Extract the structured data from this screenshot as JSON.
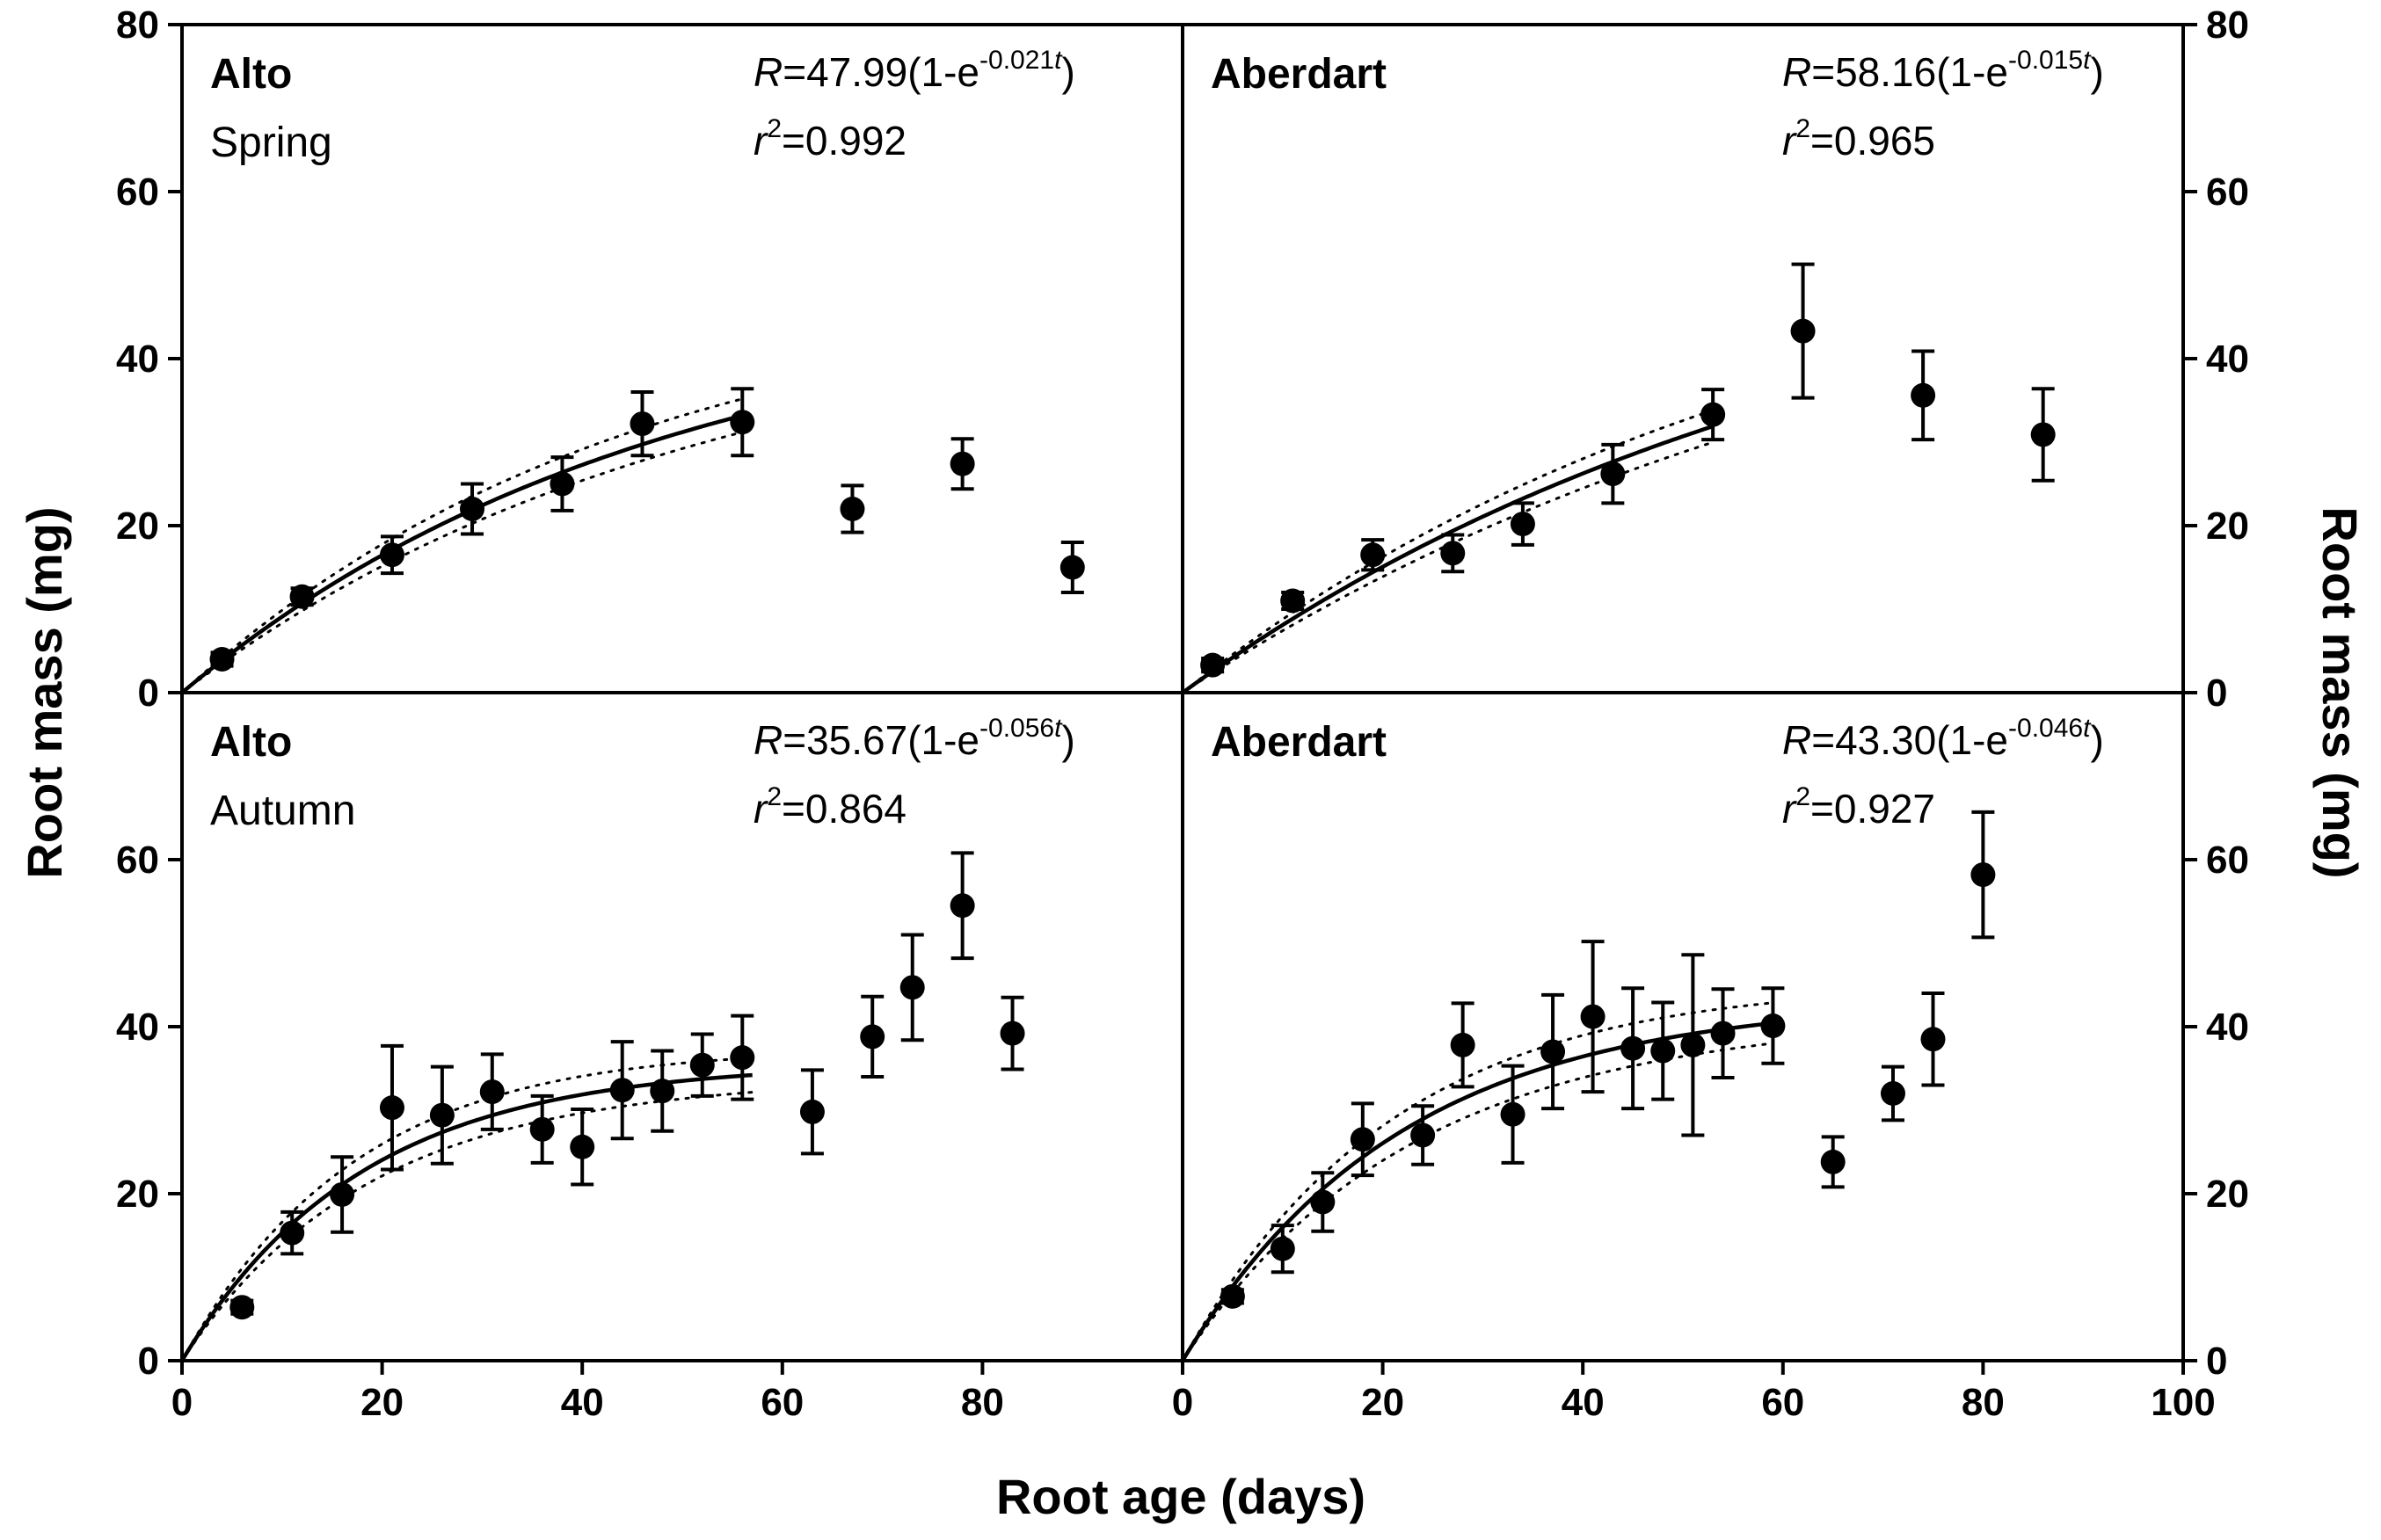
{
  "chart_data": {
    "type": "scatter",
    "layout": "2x2 panel grid",
    "xlabel": "Root age (days)",
    "ylabel_left": "Root mass (mg)",
    "ylabel_right": "Root mass (mg)",
    "ylim": [
      0,
      80
    ],
    "y_ticks": [
      "0",
      "20",
      "40",
      "60",
      "80"
    ],
    "left_xlim": [
      0,
      100
    ],
    "left_x_ticks": [
      "0",
      "20",
      "40",
      "60",
      "80"
    ],
    "right_xlim": [
      0,
      100
    ],
    "right_x_ticks": [
      "0",
      "20",
      "40",
      "60",
      "80",
      "100"
    ],
    "panels": [
      {
        "id": "alto-spring",
        "cultivar": "Alto",
        "season": "Spring",
        "eq_R_prefix": "=47.99(1-e",
        "eq_exponent": "-0.021",
        "eq_suffix": ")",
        "eq_r2": "=0.992",
        "fit": {
          "a": 47.99,
          "k": 0.021,
          "x_end": 56
        },
        "points": [
          {
            "x": 4,
            "y": 4,
            "err": 0.8
          },
          {
            "x": 12,
            "y": 11.5,
            "err": 1.0
          },
          {
            "x": 21,
            "y": 16.5,
            "err": 2.2
          },
          {
            "x": 29,
            "y": 22,
            "err": 3.0
          },
          {
            "x": 38,
            "y": 25,
            "err": 3.2
          },
          {
            "x": 46,
            "y": 32.2,
            "err": 3.8
          },
          {
            "x": 56,
            "y": 32.4,
            "err": 4.0
          },
          {
            "x": 67,
            "y": 22,
            "err": 2.8
          },
          {
            "x": 78,
            "y": 27.4,
            "err": 3.0
          },
          {
            "x": 89,
            "y": 15,
            "err": 3.0
          }
        ]
      },
      {
        "id": "aberdart-spring",
        "cultivar": "Aberdart",
        "season": "",
        "eq_R_prefix": "=58.16(1-e",
        "eq_exponent": "-0.015",
        "eq_suffix": ")",
        "eq_r2": "=0.965",
        "fit": {
          "a": 58.16,
          "k": 0.015,
          "x_end": 53
        },
        "points": [
          {
            "x": 3,
            "y": 3.3,
            "err": 0.8
          },
          {
            "x": 11,
            "y": 11,
            "err": 1.0
          },
          {
            "x": 19,
            "y": 16.5,
            "err": 1.8
          },
          {
            "x": 27,
            "y": 16.7,
            "err": 2.2
          },
          {
            "x": 34,
            "y": 20.2,
            "err": 2.5
          },
          {
            "x": 43,
            "y": 26.2,
            "err": 3.5
          },
          {
            "x": 53,
            "y": 33.3,
            "err": 3.0
          },
          {
            "x": 62,
            "y": 43.3,
            "err": 8.0
          },
          {
            "x": 74,
            "y": 35.6,
            "err": 5.3
          },
          {
            "x": 86,
            "y": 30.9,
            "err": 5.5
          }
        ]
      },
      {
        "id": "alto-autumn",
        "cultivar": "Alto",
        "season": "Autumn",
        "eq_R_prefix": "=35.67(1-e",
        "eq_exponent": "-0.056",
        "eq_suffix": ")",
        "eq_r2": "=0.864",
        "fit": {
          "a": 35.67,
          "k": 0.056,
          "x_end": 57
        },
        "points": [
          {
            "x": 6,
            "y": 6.4,
            "err": 0.8
          },
          {
            "x": 11,
            "y": 15.3,
            "err": 2.5
          },
          {
            "x": 16,
            "y": 19.9,
            "err": 4.5
          },
          {
            "x": 21,
            "y": 30.3,
            "err": 7.4
          },
          {
            "x": 26,
            "y": 29.4,
            "err": 5.8
          },
          {
            "x": 31,
            "y": 32.2,
            "err": 4.5
          },
          {
            "x": 36,
            "y": 27.7,
            "err": 4.0
          },
          {
            "x": 40,
            "y": 25.6,
            "err": 4.5
          },
          {
            "x": 44,
            "y": 32.4,
            "err": 5.8
          },
          {
            "x": 48,
            "y": 32.3,
            "err": 4.8
          },
          {
            "x": 52,
            "y": 35.4,
            "err": 3.7
          },
          {
            "x": 56,
            "y": 36.3,
            "err": 5.0
          },
          {
            "x": 63,
            "y": 29.8,
            "err": 5.0
          },
          {
            "x": 69,
            "y": 38.8,
            "err": 4.8
          },
          {
            "x": 73,
            "y": 44.7,
            "err": 6.3
          },
          {
            "x": 78,
            "y": 54.5,
            "err": 6.3
          },
          {
            "x": 83,
            "y": 39.2,
            "err": 4.3
          }
        ]
      },
      {
        "id": "aberdart-autumn",
        "cultivar": "Aberdart",
        "season": "",
        "eq_R_prefix": "=43.30(1-e",
        "eq_exponent": "-0.046",
        "eq_suffix": ")",
        "eq_r2": "=0.927",
        "fit": {
          "a": 43.3,
          "k": 0.046,
          "x_end": 59
        },
        "points": [
          {
            "x": 5,
            "y": 7.7,
            "err": 0.8
          },
          {
            "x": 10,
            "y": 13.4,
            "err": 2.8
          },
          {
            "x": 14,
            "y": 19,
            "err": 3.5
          },
          {
            "x": 18,
            "y": 26.5,
            "err": 4.3
          },
          {
            "x": 24,
            "y": 27,
            "err": 3.5
          },
          {
            "x": 28,
            "y": 37.8,
            "err": 5.0
          },
          {
            "x": 33,
            "y": 29.5,
            "err": 5.8
          },
          {
            "x": 37,
            "y": 37,
            "err": 6.8
          },
          {
            "x": 41,
            "y": 41.2,
            "err": 9.0
          },
          {
            "x": 45,
            "y": 37.4,
            "err": 7.2
          },
          {
            "x": 48,
            "y": 37.1,
            "err": 5.8
          },
          {
            "x": 51,
            "y": 37.8,
            "err": 10.8
          },
          {
            "x": 54,
            "y": 39.2,
            "err": 5.3
          },
          {
            "x": 59,
            "y": 40.1,
            "err": 4.5
          },
          {
            "x": 65,
            "y": 23.8,
            "err": 3.0
          },
          {
            "x": 71,
            "y": 32,
            "err": 3.2
          },
          {
            "x": 75,
            "y": 38.5,
            "err": 5.5
          },
          {
            "x": 80,
            "y": 58.2,
            "err": 7.5
          }
        ]
      }
    ]
  }
}
